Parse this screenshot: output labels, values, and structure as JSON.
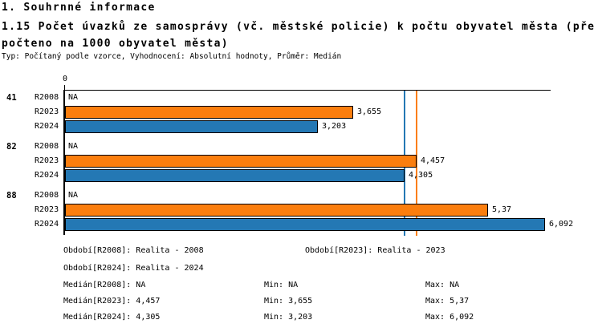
{
  "header": {
    "section": "1. Souhrnné informace",
    "title": "1.15 Počet úvazků ze samosprávy (vč. městské policie) k počtu obyvatel města (přepočteno na 1000 obyvatel města)",
    "subtitle": "Typ: Počítaný podle vzorce, Vyhodnocení: Absolutní hodnoty, Průměr: Medián"
  },
  "chart_data": {
    "type": "bar",
    "orientation": "horizontal",
    "axis": {
      "tick_label": "0",
      "min": 0,
      "max": 6.16,
      "grid": false
    },
    "series_colors": {
      "R2023": "#FB7E0E",
      "R2024": "#2478B4"
    },
    "groups": [
      {
        "label": "41",
        "rows": [
          {
            "series": "R2008",
            "value": null,
            "display": "NA"
          },
          {
            "series": "R2023",
            "value": 3.655,
            "display": "3,655"
          },
          {
            "series": "R2024",
            "value": 3.203,
            "display": "3,203"
          }
        ]
      },
      {
        "label": "82",
        "rows": [
          {
            "series": "R2008",
            "value": null,
            "display": "NA"
          },
          {
            "series": "R2023",
            "value": 4.457,
            "display": "4,457"
          },
          {
            "series": "R2024",
            "value": 4.305,
            "display": "4,305"
          }
        ]
      },
      {
        "label": "88",
        "rows": [
          {
            "series": "R2008",
            "value": null,
            "display": "NA"
          },
          {
            "series": "R2023",
            "value": 5.37,
            "display": "5,37"
          },
          {
            "series": "R2024",
            "value": 6.092,
            "display": "6,092"
          }
        ]
      }
    ],
    "reference_lines": [
      {
        "series": "R2024",
        "label": "Medián[R2024]",
        "value": 4.305,
        "color": "#2478B4"
      },
      {
        "series": "R2023",
        "label": "Medián[R2023]",
        "value": 4.457,
        "color": "#FB7E0E"
      }
    ]
  },
  "legend": {
    "obdobi_r2008": "Období[R2008]: Realita - 2008",
    "obdobi_r2023": "Období[R2023]: Realita - 2023",
    "obdobi_r2024": "Období[R2024]: Realita - 2024",
    "median_r2008": "Medián[R2008]: NA",
    "min_r2008": "Min: NA",
    "max_r2008": "Max: NA",
    "median_r2023": "Medián[R2023]: 4,457",
    "min_r2023": "Min: 3,655",
    "max_r2023": "Max: 5,37",
    "median_r2024": "Medián[R2024]: 4,305",
    "min_r2024": "Min: 3,203",
    "max_r2024": "Max: 6,092"
  }
}
